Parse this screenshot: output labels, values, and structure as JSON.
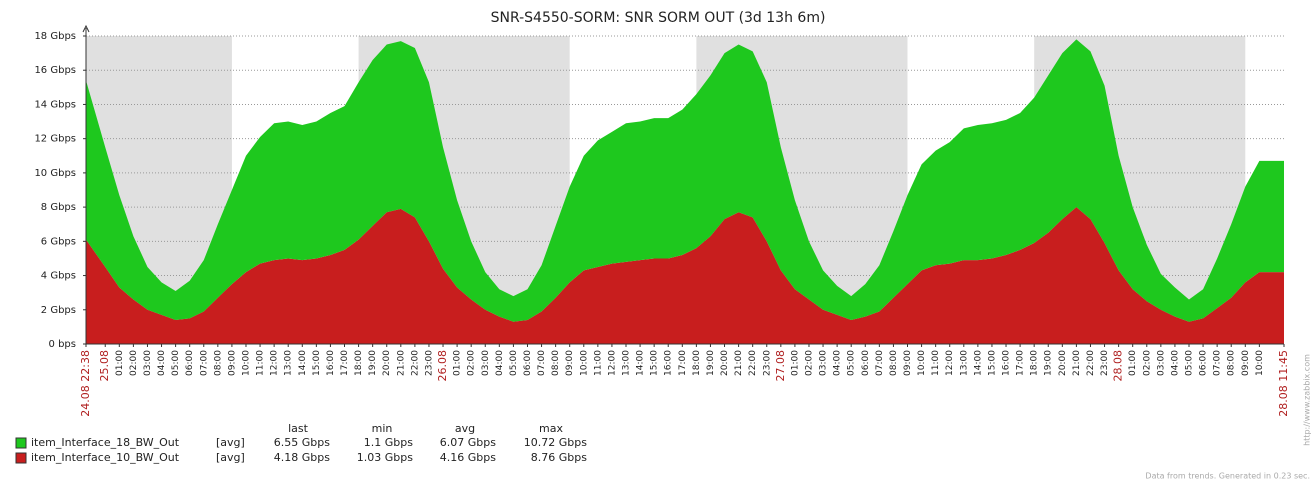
{
  "chart_data": {
    "type": "area",
    "title": "SNR-S4550-SORM: SNR SORM OUT (3d 13h 6m)",
    "categories": [
      "24.08 22:38",
      "25.08",
      "01:00",
      "02:00",
      "03:00",
      "04:00",
      "05:00",
      "06:00",
      "07:00",
      "08:00",
      "09:00",
      "10:00",
      "11:00",
      "12:00",
      "13:00",
      "14:00",
      "15:00",
      "16:00",
      "17:00",
      "18:00",
      "19:00",
      "20:00",
      "21:00",
      "22:00",
      "23:00",
      "26.08",
      "01:00",
      "02:00",
      "03:00",
      "04:00",
      "05:00",
      "06:00",
      "07:00",
      "08:00",
      "09:00",
      "10:00",
      "11:00",
      "12:00",
      "13:00",
      "14:00",
      "15:00",
      "16:00",
      "17:00",
      "18:00",
      "19:00",
      "20:00",
      "21:00",
      "22:00",
      "23:00",
      "27.08",
      "01:00",
      "02:00",
      "03:00",
      "04:00",
      "05:00",
      "06:00",
      "07:00",
      "08:00",
      "09:00",
      "10:00",
      "11:00",
      "12:00",
      "13:00",
      "14:00",
      "15:00",
      "16:00",
      "17:00",
      "18:00",
      "19:00",
      "20:00",
      "21:00",
      "22:00",
      "23:00",
      "28.08",
      "01:00",
      "02:00",
      "03:00",
      "04:00",
      "05:00",
      "06:00",
      "07:00",
      "08:00",
      "09:00",
      "10:00",
      "28.08 11:45"
    ],
    "series": [
      {
        "name": "item_Interface_18_BW_Out",
        "color": "#1ec81e",
        "values": [
          9.3,
          7.0,
          5.4,
          3.7,
          2.5,
          1.9,
          1.7,
          2.2,
          3.0,
          4.3,
          5.5,
          6.8,
          7.4,
          8.0,
          8.0,
          7.9,
          8.0,
          8.3,
          8.4,
          9.2,
          9.7,
          9.8,
          9.8,
          9.9,
          9.3,
          7.1,
          5.1,
          3.4,
          2.2,
          1.6,
          1.5,
          1.8,
          2.7,
          4.2,
          5.6,
          6.7,
          7.4,
          7.7,
          8.1,
          8.1,
          8.2,
          8.2,
          8.5,
          9.0,
          9.4,
          9.7,
          9.8,
          9.7,
          9.3,
          7.2,
          5.2,
          3.4,
          2.3,
          1.7,
          1.4,
          1.9,
          2.7,
          3.9,
          5.2,
          6.2,
          6.7,
          7.1,
          7.7,
          7.9,
          7.9,
          7.9,
          8.0,
          8.5,
          9.2,
          9.7,
          9.8,
          9.8,
          9.2,
          6.7,
          4.8,
          3.3,
          2.1,
          1.7,
          1.3,
          1.7,
          2.9,
          4.3,
          5.6,
          6.5,
          6.5
        ]
      },
      {
        "name": "item_Interface_10_BW_Out",
        "color": "#c81e1e",
        "values": [
          6.1,
          4.5,
          3.3,
          2.6,
          2.0,
          1.7,
          1.4,
          1.5,
          1.9,
          2.7,
          3.5,
          4.2,
          4.7,
          4.9,
          5.0,
          4.9,
          5.0,
          5.2,
          5.5,
          6.1,
          6.9,
          7.7,
          7.9,
          7.4,
          6.0,
          4.4,
          3.3,
          2.6,
          2.0,
          1.6,
          1.3,
          1.4,
          1.9,
          2.7,
          3.6,
          4.3,
          4.5,
          4.7,
          4.8,
          4.9,
          5.0,
          5.0,
          5.2,
          5.6,
          6.3,
          7.3,
          7.7,
          7.4,
          6.0,
          4.3,
          3.2,
          2.6,
          2.0,
          1.7,
          1.4,
          1.6,
          1.9,
          2.7,
          3.5,
          4.3,
          4.6,
          4.7,
          4.9,
          4.9,
          5.0,
          5.2,
          5.5,
          5.9,
          6.5,
          7.3,
          8.0,
          7.3,
          5.9,
          4.3,
          3.2,
          2.5,
          2.0,
          1.6,
          1.3,
          1.5,
          2.1,
          2.7,
          3.6,
          4.2,
          4.2
        ]
      }
    ],
    "stacked": true,
    "ylim": [
      0,
      18
    ],
    "yticks": [
      {
        "value": 0,
        "label": "0 bps"
      },
      {
        "value": 2,
        "label": "2 Gbps"
      },
      {
        "value": 4,
        "label": "4 Gbps"
      },
      {
        "value": 6,
        "label": "6 Gbps"
      },
      {
        "value": 8,
        "label": "8 Gbps"
      },
      {
        "value": 10,
        "label": "10 Gbps"
      },
      {
        "value": 12,
        "label": "12 Gbps"
      },
      {
        "value": 14,
        "label": "14 Gbps"
      },
      {
        "value": 16,
        "label": "16 Gbps"
      },
      {
        "value": 18,
        "label": "18 Gbps"
      }
    ],
    "grid": true
  },
  "legend_table": {
    "headers": [
      "last",
      "min",
      "avg",
      "max"
    ],
    "rows": [
      {
        "func": "[avg]",
        "cells": [
          "6.55 Gbps",
          "1.1 Gbps",
          "6.07 Gbps",
          "10.72 Gbps"
        ]
      },
      {
        "func": "[avg]",
        "cells": [
          "4.18 Gbps",
          "1.03 Gbps",
          "4.16 Gbps",
          "8.76 Gbps"
        ]
      }
    ]
  },
  "watermark": "http://www.zabbix.com",
  "footer": "Data from trends. Generated in 0.23 sec."
}
